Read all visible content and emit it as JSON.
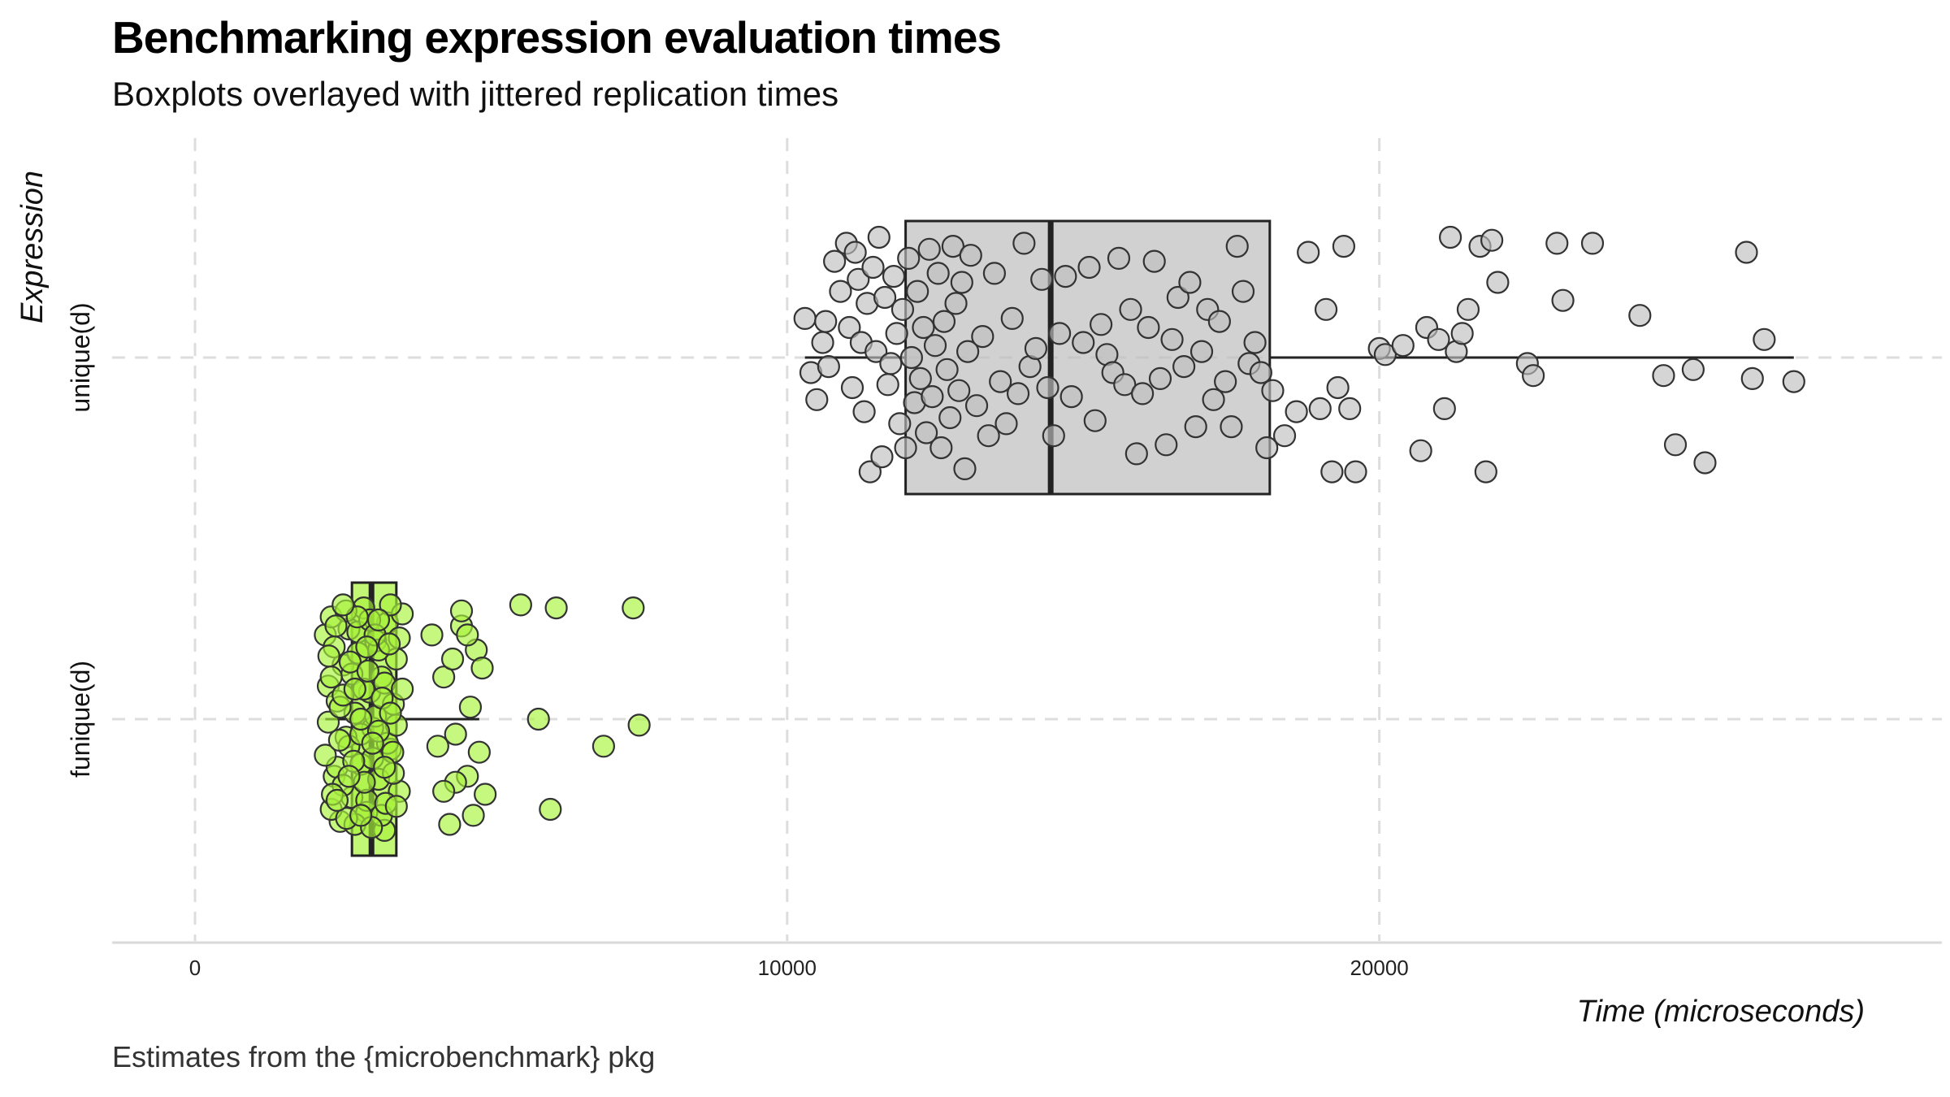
{
  "title": "Benchmarking expression evaluation times",
  "subtitle": "Boxplots overlayed with jittered replication times",
  "caption": "Estimates from the {microbenchmark} pkg",
  "colors": {
    "unique_fill": "#bebebe",
    "funique_fill": "#a8f23a",
    "point_stroke": "#333333",
    "box_stroke": "#222222",
    "grid": "#dddddd"
  },
  "chart_data": {
    "type": "boxplot",
    "orientation": "horizontal",
    "xlabel": "Time (microseconds)",
    "ylabel": "Expression",
    "xlim": [
      -1400,
      29500
    ],
    "x_ticks": [
      0,
      10000,
      20000
    ],
    "x_tick_labels": [
      "0",
      "10000",
      "20000"
    ],
    "grid": true,
    "categories": [
      "unique(d)",
      "funique(d)"
    ],
    "series": [
      {
        "name": "unique(d)",
        "box": {
          "whisker_low": 10300,
          "q1": 12000,
          "median": 14450,
          "q3": 18150,
          "whisker_high": 27000
        },
        "points": [
          [
            10300,
            1.13
          ],
          [
            10400,
            0.95
          ],
          [
            10500,
            0.86
          ],
          [
            10600,
            1.05
          ],
          [
            10650,
            1.12
          ],
          [
            10700,
            0.97
          ],
          [
            10800,
            1.32
          ],
          [
            10900,
            1.22
          ],
          [
            11000,
            1.38
          ],
          [
            11050,
            1.1
          ],
          [
            11100,
            0.9
          ],
          [
            11150,
            1.35
          ],
          [
            11200,
            1.26
          ],
          [
            11250,
            1.05
          ],
          [
            11300,
            0.82
          ],
          [
            11350,
            1.18
          ],
          [
            11400,
            0.62
          ],
          [
            11450,
            1.3
          ],
          [
            11500,
            1.02
          ],
          [
            11550,
            1.4
          ],
          [
            11600,
            0.67
          ],
          [
            11650,
            1.2
          ],
          [
            11700,
            0.91
          ],
          [
            11750,
            0.98
          ],
          [
            11800,
            1.27
          ],
          [
            11850,
            1.08
          ],
          [
            11900,
            0.78
          ],
          [
            11950,
            1.16
          ],
          [
            12000,
            0.7
          ],
          [
            12050,
            1.33
          ],
          [
            12100,
            1.0
          ],
          [
            12150,
            0.85
          ],
          [
            12200,
            1.22
          ],
          [
            12250,
            0.93
          ],
          [
            12300,
            1.1
          ],
          [
            12350,
            0.75
          ],
          [
            12400,
            1.36
          ],
          [
            12450,
            0.87
          ],
          [
            12500,
            1.04
          ],
          [
            12550,
            1.28
          ],
          [
            12600,
            0.7
          ],
          [
            12650,
            1.12
          ],
          [
            12700,
            0.96
          ],
          [
            12750,
            0.8
          ],
          [
            12800,
            1.37
          ],
          [
            12850,
            1.18
          ],
          [
            12900,
            0.89
          ],
          [
            12950,
            1.25
          ],
          [
            13000,
            0.63
          ],
          [
            13050,
            1.02
          ],
          [
            13100,
            1.34
          ],
          [
            13200,
            0.84
          ],
          [
            13300,
            1.07
          ],
          [
            13400,
            0.74
          ],
          [
            13500,
            1.28
          ],
          [
            13600,
            0.92
          ],
          [
            13700,
            0.78
          ],
          [
            13800,
            1.13
          ],
          [
            13900,
            0.88
          ],
          [
            14000,
            1.38
          ],
          [
            14100,
            0.97
          ],
          [
            14200,
            1.03
          ],
          [
            14300,
            1.26
          ],
          [
            14400,
            0.9
          ],
          [
            14500,
            0.74
          ],
          [
            14600,
            1.08
          ],
          [
            14700,
            1.27
          ],
          [
            14800,
            0.87
          ],
          [
            15000,
            1.05
          ],
          [
            15100,
            1.3
          ],
          [
            15200,
            0.79
          ],
          [
            15300,
            1.11
          ],
          [
            15400,
            1.01
          ],
          [
            15500,
            0.95
          ],
          [
            15600,
            1.33
          ],
          [
            15700,
            0.91
          ],
          [
            15800,
            1.16
          ],
          [
            15900,
            0.68
          ],
          [
            16000,
            0.88
          ],
          [
            16100,
            1.1
          ],
          [
            16200,
            1.32
          ],
          [
            16300,
            0.93
          ],
          [
            16400,
            0.71
          ],
          [
            16500,
            1.06
          ],
          [
            16600,
            1.2
          ],
          [
            16700,
            0.97
          ],
          [
            16800,
            1.25
          ],
          [
            16900,
            0.77
          ],
          [
            17000,
            1.02
          ],
          [
            17100,
            1.16
          ],
          [
            17200,
            0.86
          ],
          [
            17300,
            1.12
          ],
          [
            17400,
            0.92
          ],
          [
            17500,
            0.77
          ],
          [
            17600,
            1.37
          ],
          [
            17700,
            1.22
          ],
          [
            17800,
            0.98
          ],
          [
            17900,
            1.05
          ],
          [
            18000,
            0.95
          ],
          [
            18100,
            0.7
          ],
          [
            18200,
            0.89
          ],
          [
            18400,
            0.74
          ],
          [
            18600,
            0.82
          ],
          [
            18800,
            1.35
          ],
          [
            19000,
            0.83
          ],
          [
            19100,
            1.16
          ],
          [
            19200,
            0.62
          ],
          [
            19300,
            0.9
          ],
          [
            19400,
            1.37
          ],
          [
            19500,
            0.83
          ],
          [
            19600,
            0.62
          ],
          [
            20000,
            1.03
          ],
          [
            20100,
            1.01
          ],
          [
            20400,
            1.04
          ],
          [
            20700,
            0.69
          ],
          [
            20800,
            1.1
          ],
          [
            21000,
            1.06
          ],
          [
            21100,
            0.83
          ],
          [
            21200,
            1.4
          ],
          [
            21300,
            1.02
          ],
          [
            21400,
            1.08
          ],
          [
            21500,
            1.16
          ],
          [
            21700,
            1.37
          ],
          [
            21800,
            0.62
          ],
          [
            21900,
            1.39
          ],
          [
            22000,
            1.25
          ],
          [
            22500,
            0.98
          ],
          [
            22600,
            0.94
          ],
          [
            23000,
            1.38
          ],
          [
            23100,
            1.19
          ],
          [
            23600,
            1.38
          ],
          [
            24400,
            1.14
          ],
          [
            24800,
            0.94
          ],
          [
            25000,
            0.71
          ],
          [
            25300,
            0.96
          ],
          [
            25500,
            0.65
          ],
          [
            26200,
            1.35
          ],
          [
            26300,
            0.93
          ],
          [
            26500,
            1.06
          ],
          [
            27000,
            0.92
          ]
        ]
      },
      {
        "name": "funique(d)",
        "box": {
          "whisker_low": 2200,
          "q1": 2650,
          "median": 2980,
          "q3": 3400,
          "whisker_high": 4800
        },
        "points": [
          [
            2200,
            0.28
          ],
          [
            2250,
            0.11
          ],
          [
            2300,
            0.34
          ],
          [
            2350,
            -0.19
          ],
          [
            2400,
            0.06
          ],
          [
            2450,
            -0.34
          ],
          [
            2500,
            0.18
          ],
          [
            2550,
            -0.06
          ],
          [
            2600,
            0.3
          ],
          [
            2650,
            -0.26
          ],
          [
            2700,
            0.02
          ],
          [
            2750,
            0.22
          ],
          [
            2800,
            -0.15
          ],
          [
            2850,
            0.37
          ],
          [
            2900,
            -0.31
          ],
          [
            2950,
            0.09
          ],
          [
            3000,
            -0.03
          ],
          [
            3050,
            0.26
          ],
          [
            3100,
            -0.2
          ],
          [
            3150,
            0.14
          ],
          [
            3200,
            -0.37
          ],
          [
            3250,
            0.32
          ],
          [
            3300,
            -0.1
          ],
          [
            3350,
            0.05
          ],
          [
            3400,
            0.2
          ],
          [
            3450,
            -0.24
          ],
          [
            3500,
            0.35
          ],
          [
            2250,
            -0.01
          ],
          [
            2300,
            -0.3
          ],
          [
            2350,
            0.24
          ],
          [
            2400,
            -0.16
          ],
          [
            2450,
            0.04
          ],
          [
            2500,
            -0.22
          ],
          [
            2550,
            0.36
          ],
          [
            2600,
            -0.09
          ],
          [
            2650,
            0.15
          ],
          [
            2700,
            -0.35
          ],
          [
            2750,
            0.29
          ],
          [
            2800,
            -0.05
          ],
          [
            2850,
            0.1
          ],
          [
            2900,
            -0.27
          ],
          [
            2950,
            0.33
          ],
          [
            3000,
            -0.13
          ],
          [
            3050,
            0.01
          ],
          [
            3100,
            0.23
          ],
          [
            3150,
            -0.32
          ],
          [
            3200,
            0.12
          ],
          [
            3250,
            -0.08
          ],
          [
            3300,
            0.38
          ],
          [
            3350,
            -0.18
          ],
          [
            3400,
            -0.02
          ],
          [
            3450,
            0.27
          ],
          [
            2200,
            -0.12
          ],
          [
            2260,
            0.21
          ],
          [
            2320,
            -0.25
          ],
          [
            2380,
            0.31
          ],
          [
            2440,
            -0.07
          ],
          [
            2500,
            0.08
          ],
          [
            2560,
            -0.33
          ],
          [
            2620,
            0.19
          ],
          [
            2680,
            -0.14
          ],
          [
            2740,
            0.34
          ],
          [
            2800,
            0.0
          ],
          [
            2860,
            -0.21
          ],
          [
            2920,
            0.16
          ],
          [
            2980,
            -0.36
          ],
          [
            3040,
            0.28
          ],
          [
            3100,
            -0.04
          ],
          [
            3160,
            0.07
          ],
          [
            3220,
            -0.28
          ],
          [
            3280,
            0.25
          ],
          [
            3340,
            -0.11
          ],
          [
            2300,
            0.14
          ],
          [
            2400,
            -0.27
          ],
          [
            2500,
            0.38
          ],
          [
            2600,
            -0.19
          ],
          [
            2700,
            0.1
          ],
          [
            2800,
            -0.32
          ],
          [
            2900,
            0.24
          ],
          [
            3000,
            -0.08
          ],
          [
            3100,
            0.33
          ],
          [
            3200,
            -0.16
          ],
          [
            3300,
            0.02
          ],
          [
            3400,
            -0.29
          ],
          [
            3500,
            0.1
          ],
          [
            4000,
            0.28
          ],
          [
            4100,
            -0.09
          ],
          [
            4200,
            0.14
          ],
          [
            4300,
            -0.35
          ],
          [
            4350,
            0.2
          ],
          [
            4400,
            -0.05
          ],
          [
            4500,
            0.31
          ],
          [
            4600,
            -0.19
          ],
          [
            4650,
            0.04
          ],
          [
            4700,
            -0.32
          ],
          [
            4750,
            0.23
          ],
          [
            4800,
            -0.11
          ],
          [
            4850,
            0.17
          ],
          [
            4900,
            -0.25
          ],
          [
            4500,
            0.36
          ],
          [
            4400,
            -0.21
          ],
          [
            5500,
            0.38
          ],
          [
            5800,
            0.0
          ],
          [
            6000,
            -0.3
          ],
          [
            6100,
            0.37
          ],
          [
            6900,
            -0.09
          ],
          [
            7400,
            0.37
          ],
          [
            7500,
            -0.02
          ],
          [
            4200,
            -0.24
          ],
          [
            4600,
            0.28
          ]
        ]
      }
    ]
  }
}
